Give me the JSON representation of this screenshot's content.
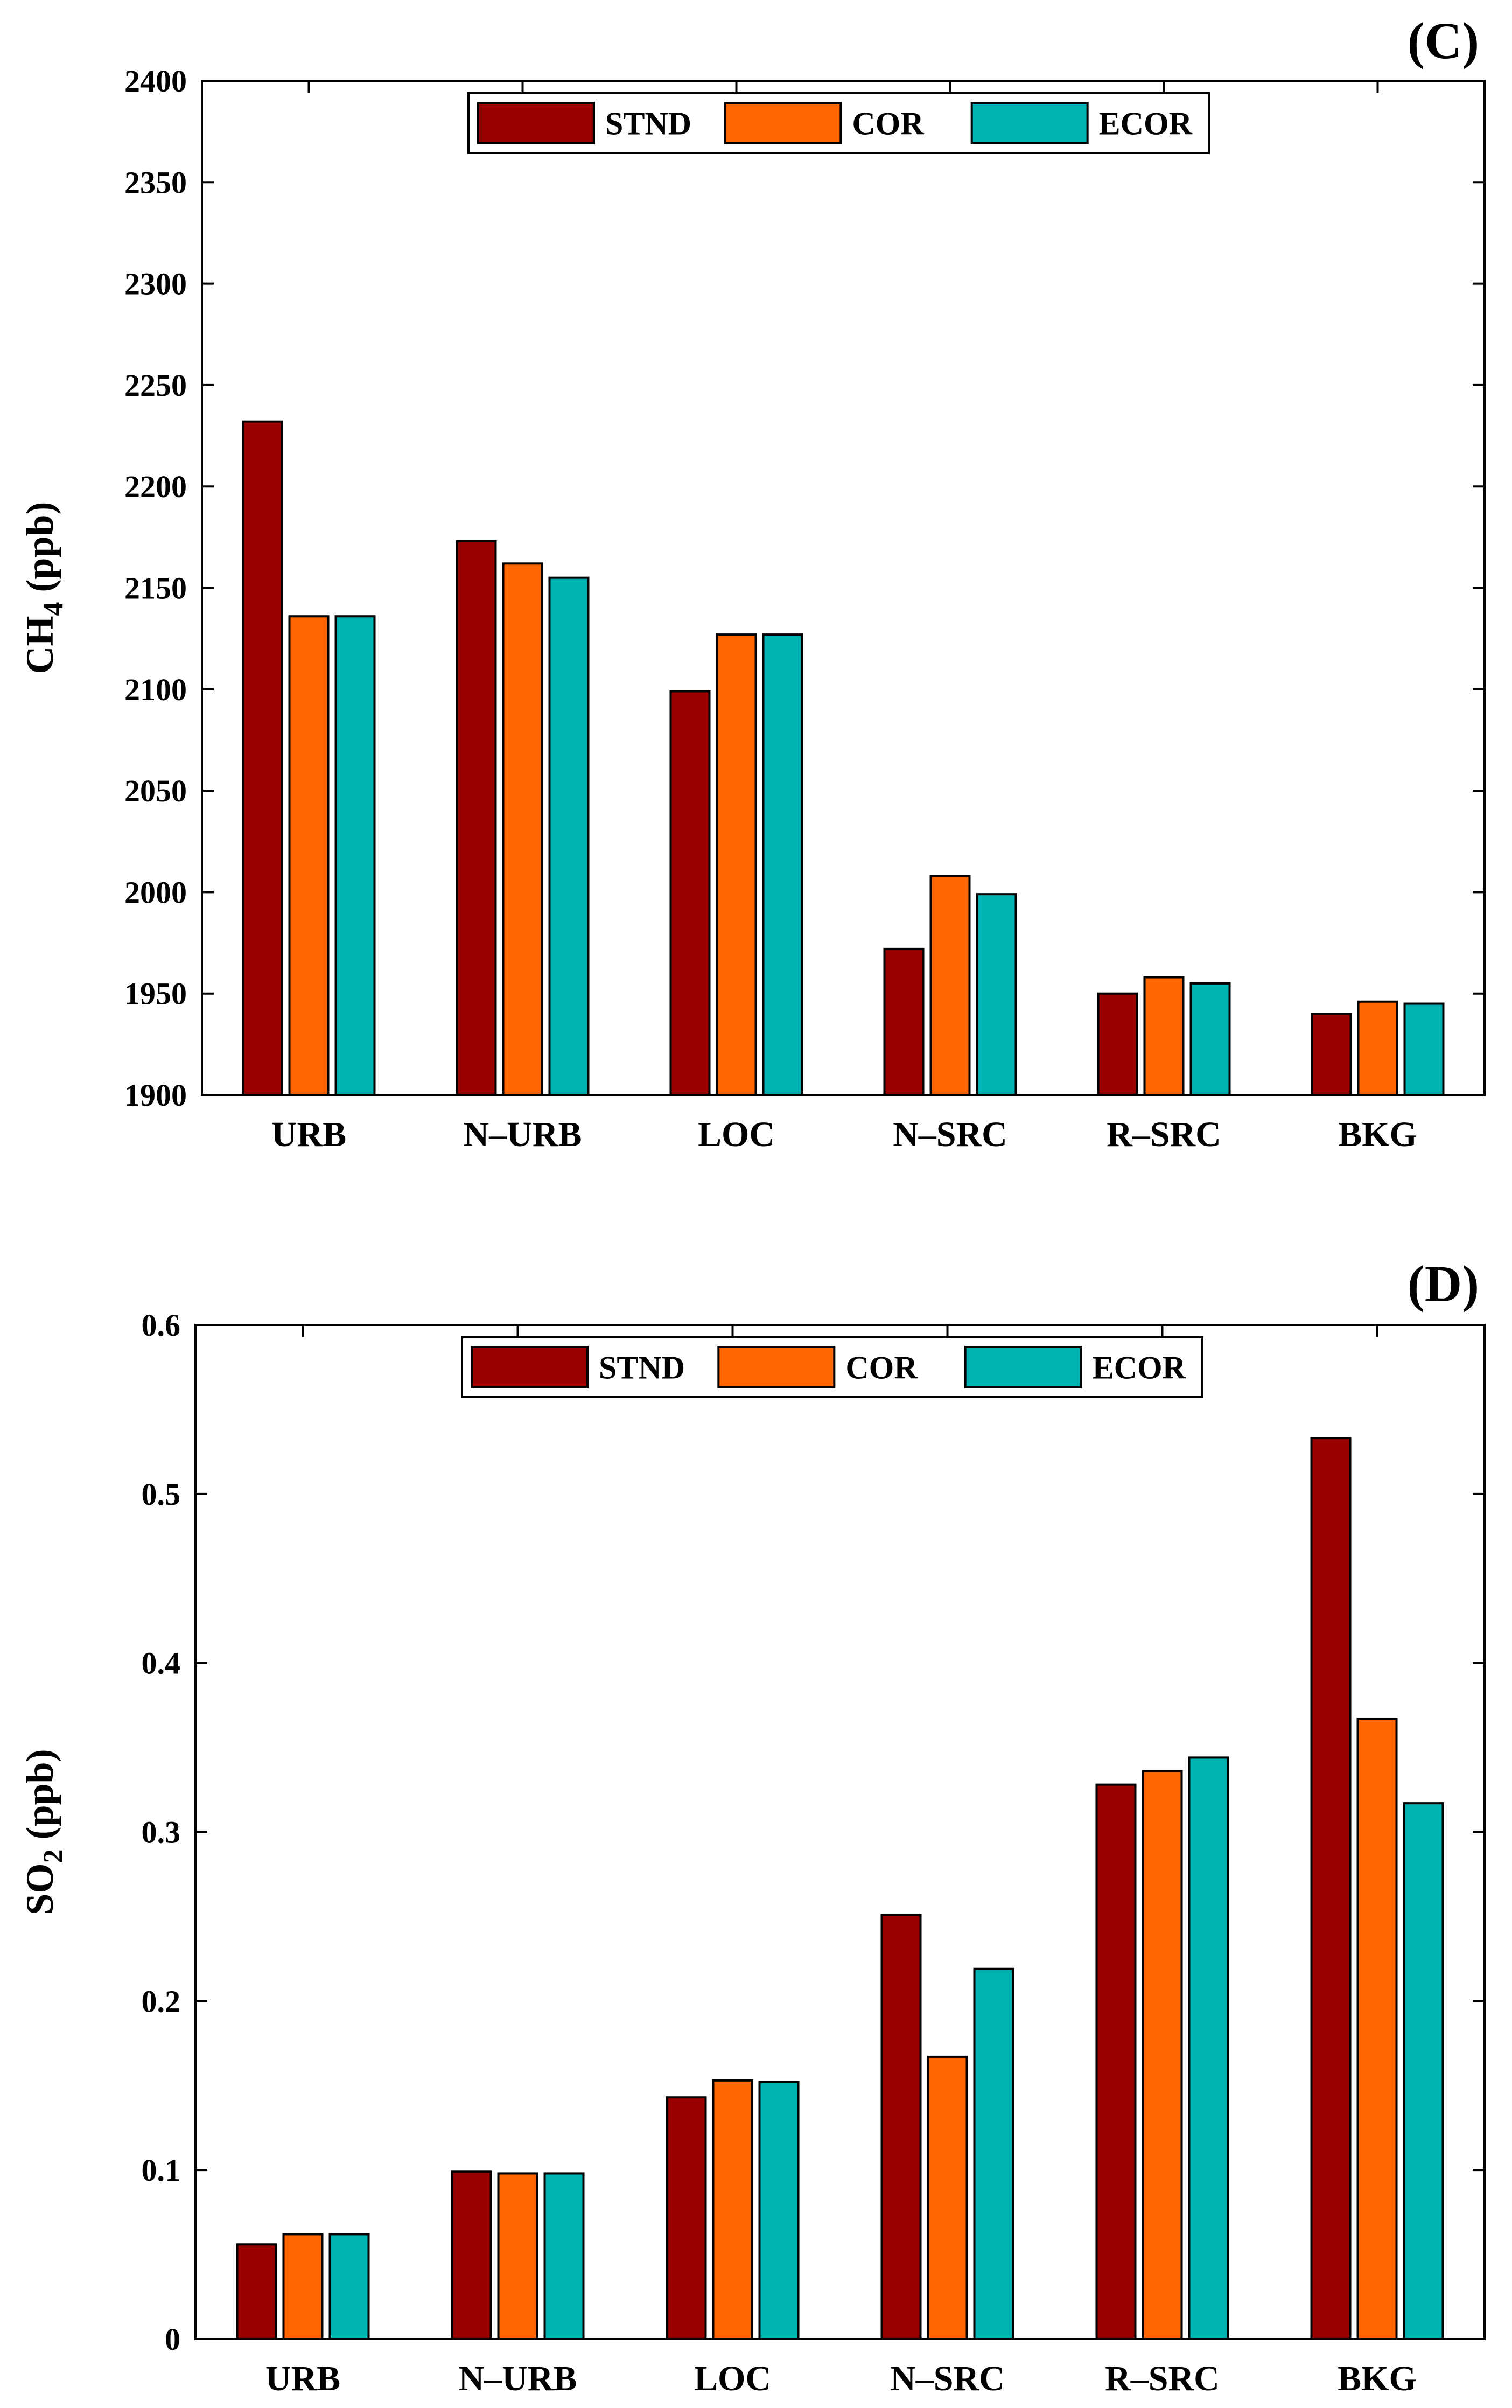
{
  "colors": {
    "STND": "#990000",
    "COR": "#ff6600",
    "ECOR": "#00b3b3"
  },
  "chart_data": [
    {
      "type": "bar",
      "panel_label": "(C)",
      "ylabel_main": "CH",
      "ylabel_sub": "4",
      "ylabel_unit": " (ppb)",
      "categories": [
        "URB",
        "N–URB",
        "LOC",
        "N–SRC",
        "R–SRC",
        "BKG"
      ],
      "series": [
        {
          "name": "STND",
          "values": [
            2232,
            2173,
            2099,
            1972,
            1950,
            1940
          ]
        },
        {
          "name": "COR",
          "values": [
            2136,
            2162,
            2127,
            2008,
            1958,
            1946
          ]
        },
        {
          "name": "ECOR",
          "values": [
            2136,
            2155,
            2127,
            1999,
            1955,
            1945
          ]
        }
      ],
      "ylim": [
        1900,
        2400
      ],
      "yticks": [
        "1900",
        "1950",
        "2000",
        "2050",
        "2100",
        "2150",
        "2200",
        "2250",
        "2300",
        "2350",
        "2400"
      ],
      "legend": "top-center"
    },
    {
      "type": "bar",
      "panel_label": "(D)",
      "ylabel_main": "SO",
      "ylabel_sub": "2",
      "ylabel_unit": " (ppb)",
      "categories": [
        "URB",
        "N–URB",
        "LOC",
        "N–SRC",
        "R–SRC",
        "BKG"
      ],
      "series": [
        {
          "name": "STND",
          "values": [
            0.056,
            0.099,
            0.143,
            0.251,
            0.328,
            0.533
          ]
        },
        {
          "name": "COR",
          "values": [
            0.062,
            0.098,
            0.153,
            0.167,
            0.336,
            0.367
          ]
        },
        {
          "name": "ECOR",
          "values": [
            0.062,
            0.098,
            0.152,
            0.219,
            0.344,
            0.317
          ]
        }
      ],
      "ylim": [
        0,
        0.6
      ],
      "yticks": [
        "0",
        "0.1",
        "0.2",
        "0.3",
        "0.4",
        "0.5",
        "0.6"
      ],
      "legend": "top-center"
    }
  ]
}
